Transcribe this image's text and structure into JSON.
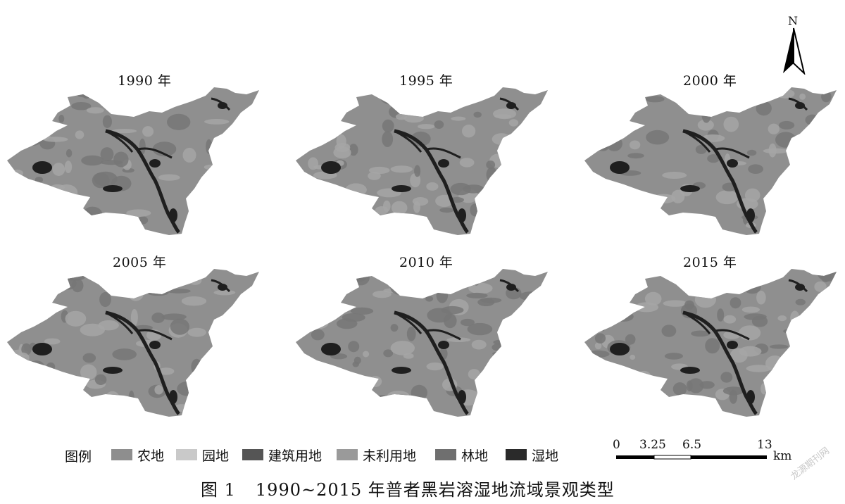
{
  "maps": [
    {
      "year_label": "1990 年"
    },
    {
      "year_label": "1995 年"
    },
    {
      "year_label": "2000 年"
    },
    {
      "year_label": "2005 年"
    },
    {
      "year_label": "2010 年"
    },
    {
      "year_label": "2015 年"
    }
  ],
  "north_label": "N",
  "legend": {
    "title": "图例",
    "items": [
      {
        "label": "农地",
        "color": "#8e8e8e"
      },
      {
        "label": "园地",
        "color": "#c9c9c9"
      },
      {
        "label": "建筑用地",
        "color": "#555555"
      },
      {
        "label": "未利用地",
        "color": "#9a9a9a"
      },
      {
        "label": "林地",
        "color": "#6f6f6f"
      },
      {
        "label": "湿地",
        "color": "#2a2a2a"
      }
    ]
  },
  "scale": {
    "ticks": [
      "0",
      "3.25",
      "6.5",
      "13"
    ],
    "unit": "km"
  },
  "caption": {
    "fig_no": "图 1",
    "text": "1990~2015 年普者黑岩溶湿地流域景观类型"
  },
  "watermark": "龙源期刊网",
  "colors": {
    "base": "#8f8f8f",
    "patch_light": "#a6a6a6",
    "patch_mid": "#777777",
    "wetland": "#1f1f1f"
  }
}
